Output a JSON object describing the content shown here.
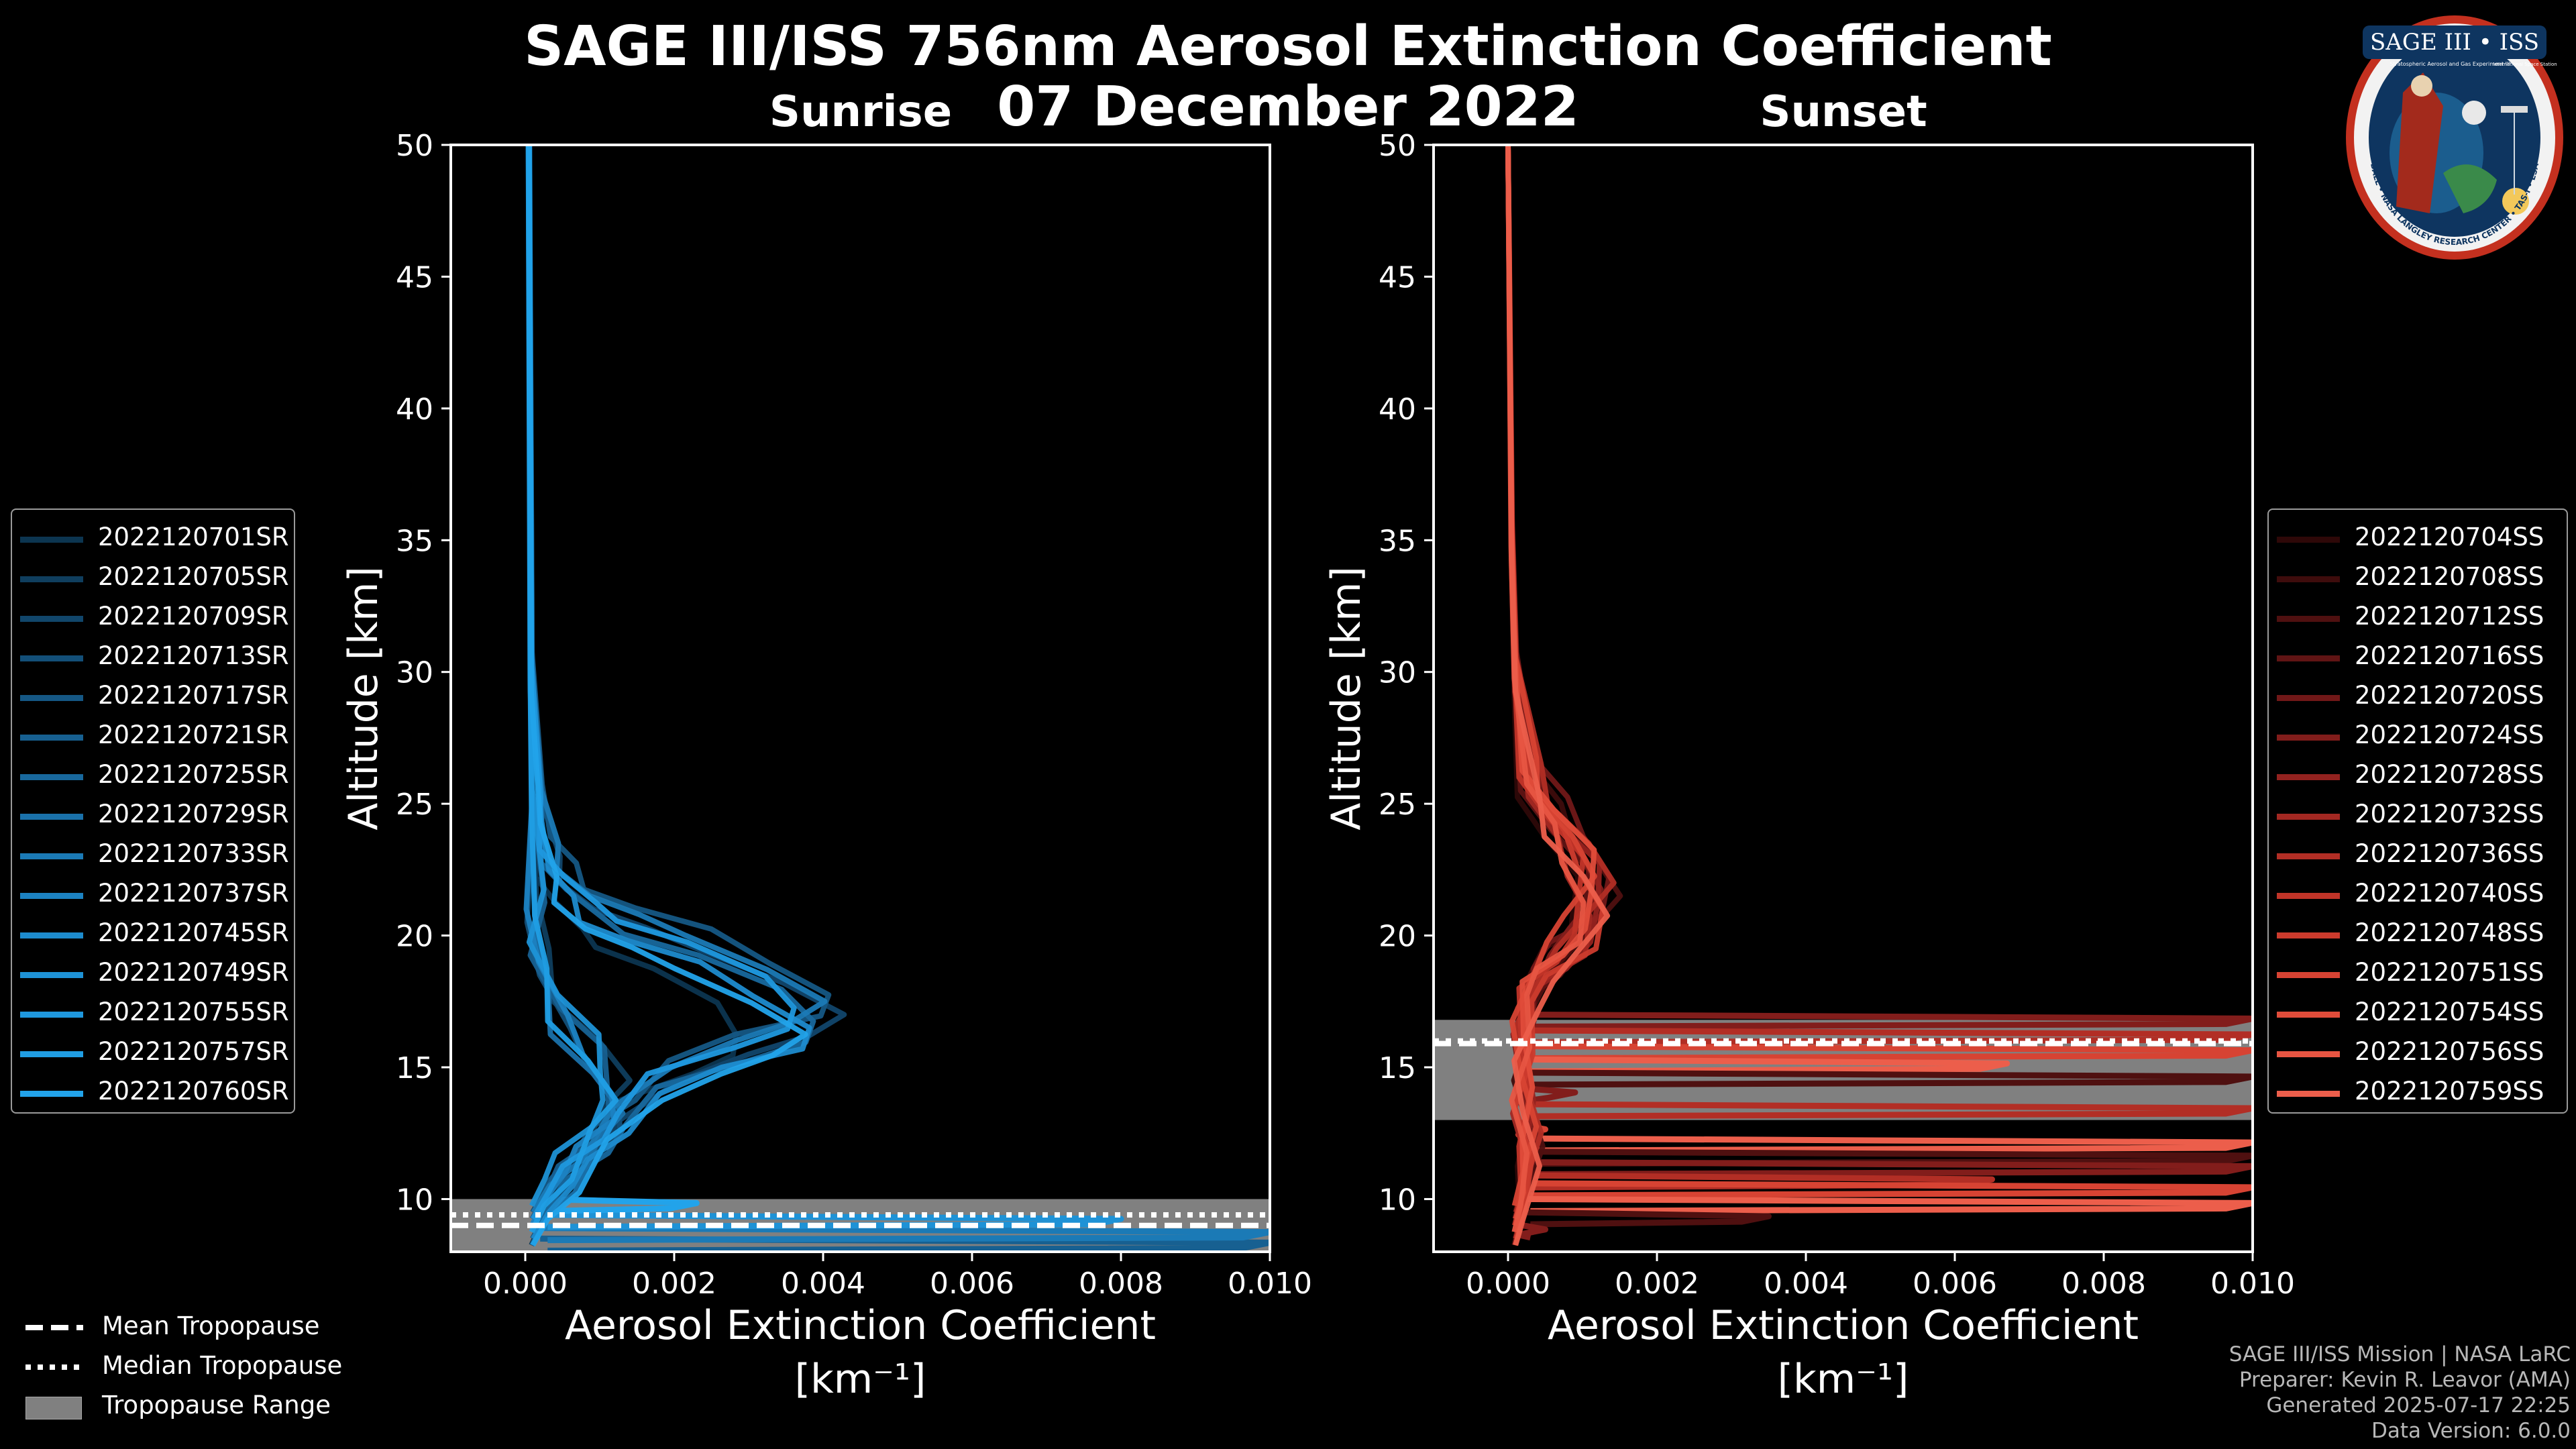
{
  "figure": {
    "title_line1": "SAGE III/ISS 756nm Aerosol Extinction Coefficient",
    "title_line2": "07 December 2022",
    "credits": [
      "SAGE III/ISS Mission | NASA LaRC",
      "Preparer: Kevin R. Leavor (AMA)",
      "Generated 2025-07-17 22:25",
      "Data Version: 6.0.0"
    ],
    "badge": {
      "name": "SAGE III • ISS",
      "ring_text": "BALL • NASA LANGLEY RESEARCH CENTER • TAS-I • ESA",
      "subtitle": "Stratospheric Aerosol and Gas Experiment III",
      "subtitle2": "International Space Station"
    }
  },
  "legends": {
    "sunrise": {
      "entries": [
        "2022120701SR",
        "2022120705SR",
        "2022120709SR",
        "2022120713SR",
        "2022120717SR",
        "2022120721SR",
        "2022120725SR",
        "2022120729SR",
        "2022120733SR",
        "2022120737SR",
        "2022120745SR",
        "2022120749SR",
        "2022120755SR",
        "2022120757SR",
        "2022120760SR"
      ],
      "colors": [
        "#0c3550",
        "#0f3e5e",
        "#11466b",
        "#134f78",
        "#155784",
        "#176091",
        "#18689d",
        "#1a71aa",
        "#1b7ab6",
        "#1c82c2",
        "#1d8bcd",
        "#1e92d6",
        "#1f98de",
        "#209ee4",
        "#22a3ea"
      ]
    },
    "sunset": {
      "entries": [
        "2022120704SS",
        "2022120708SS",
        "2022120712SS",
        "2022120716SS",
        "2022120720SS",
        "2022120724SS",
        "2022120728SS",
        "2022120732SS",
        "2022120736SS",
        "2022120740SS",
        "2022120748SS",
        "2022120751SS",
        "2022120754SS",
        "2022120756SS",
        "2022120759SS"
      ],
      "colors": [
        "#2e0808",
        "#3e0c0c",
        "#4f1010",
        "#601414",
        "#711818",
        "#821d1b",
        "#93221f",
        "#a32822",
        "#b22e25",
        "#c03428",
        "#cc3b2d",
        "#d74333",
        "#e04c3a",
        "#e75542",
        "#ec5e4b"
      ]
    },
    "tropopause": {
      "entries": [
        "Mean Tropopause",
        "Median Tropopause",
        "Tropopause Range"
      ],
      "range_color": "#808080"
    }
  },
  "chart_data": [
    {
      "type": "line",
      "panel": "sunrise",
      "title": "Sunrise",
      "xlabel": "Aerosol Extinction Coefficient",
      "xunit": "[km⁻¹]",
      "ylabel": "Altitude [km]",
      "xlim": [
        -0.001,
        0.01
      ],
      "ylim": [
        8,
        50
      ],
      "xticks": [
        0.0,
        0.002,
        0.004,
        0.006,
        0.008,
        0.01
      ],
      "xtick_labels": [
        "0.000",
        "0.002",
        "0.004",
        "0.006",
        "0.008",
        "0.010"
      ],
      "yticks": [
        10,
        15,
        20,
        25,
        30,
        35,
        40,
        45,
        50
      ],
      "ytick_labels": [
        "10",
        "15",
        "20",
        "25",
        "30",
        "35",
        "40",
        "45",
        "50"
      ],
      "tropopause": {
        "mean": 9.0,
        "median": 9.4,
        "range": [
          8.0,
          10.0
        ]
      },
      "series_bulge": {
        "x": [
          5e-05,
          8e-05,
          0.0002,
          0.0003,
          0.0005,
          0.0008,
          0.0013,
          0.0021,
          0.003,
          0.0036,
          0.0034,
          0.0026,
          0.0017,
          0.0012,
          0.0009,
          0.0006,
          0.0003,
          0.0001
        ],
        "y": [
          50,
          30,
          25,
          23,
          22,
          21,
          20.3,
          19.5,
          18.2,
          17.0,
          16.2,
          15.5,
          14.5,
          13.0,
          12.0,
          11.0,
          10.0,
          9.0
        ]
      },
      "series_narrow": {
        "x": [
          5e-05,
          8e-05,
          0.0001,
          0.00015,
          0.0002,
          0.0005,
          0.001,
          0.0013,
          0.0012,
          0.0009,
          0.0006,
          0.0003,
          0.0001
        ],
        "y": [
          50,
          30,
          25,
          21,
          19,
          17,
          15.5,
          14,
          13,
          12,
          11,
          10,
          9
        ]
      },
      "low_level_spikes": [
        {
          "y": 8.5,
          "x": 0.01
        },
        {
          "y": 8.9,
          "x": 0.01
        },
        {
          "y": 9.4,
          "x": 0.008
        },
        {
          "y": 10.0,
          "x": 0.0023
        }
      ]
    },
    {
      "type": "line",
      "panel": "sunset",
      "title": "Sunset",
      "xlabel": "Aerosol Extinction Coefficient",
      "xunit": "[km⁻¹]",
      "ylabel": "Altitude [km]",
      "xlim": [
        -0.001,
        0.01
      ],
      "ylim": [
        8,
        50
      ],
      "xticks": [
        0.0,
        0.002,
        0.004,
        0.006,
        0.008,
        0.01
      ],
      "xtick_labels": [
        "0.000",
        "0.002",
        "0.004",
        "0.006",
        "0.008",
        "0.010"
      ],
      "yticks": [
        10,
        15,
        20,
        25,
        30,
        35,
        40,
        45,
        50
      ],
      "ytick_labels": [
        "10",
        "15",
        "20",
        "25",
        "30",
        "35",
        "40",
        "45",
        "50"
      ],
      "tropopause": {
        "mean": 15.9,
        "median": 16.0,
        "range": [
          13.0,
          16.8
        ]
      },
      "series_profile": {
        "x": [
          0.0,
          5e-05,
          0.0001,
          0.0003,
          0.0006,
          0.001,
          0.0012,
          0.001,
          0.0006,
          0.0003,
          0.0002,
          0.0002,
          0.0003,
          0.0002,
          0.0001
        ],
        "y": [
          50,
          35,
          30,
          26,
          24.5,
          23,
          21.5,
          20,
          19,
          18,
          16,
          14,
          12,
          10,
          9
        ]
      },
      "low_level_spikes": [
        {
          "y": 17.0,
          "x": 0.01
        },
        {
          "y": 16.4,
          "x": 0.01
        },
        {
          "y": 15.8,
          "x": 0.01
        },
        {
          "y": 15.3,
          "x": 0.0067
        },
        {
          "y": 14.8,
          "x": 0.01
        },
        {
          "y": 14.2,
          "x": 0.0009
        },
        {
          "y": 13.6,
          "x": 0.01
        },
        {
          "y": 12.8,
          "x": 0.0005
        },
        {
          "y": 12.3,
          "x": 0.01
        },
        {
          "y": 11.8,
          "x": 0.01
        },
        {
          "y": 11.4,
          "x": 0.01
        },
        {
          "y": 10.9,
          "x": 0.0065
        },
        {
          "y": 10.6,
          "x": 0.01
        },
        {
          "y": 10.0,
          "x": 0.01
        },
        {
          "y": 9.5,
          "x": 0.0035
        },
        {
          "y": 9.0,
          "x": 0.0005
        }
      ]
    }
  ]
}
